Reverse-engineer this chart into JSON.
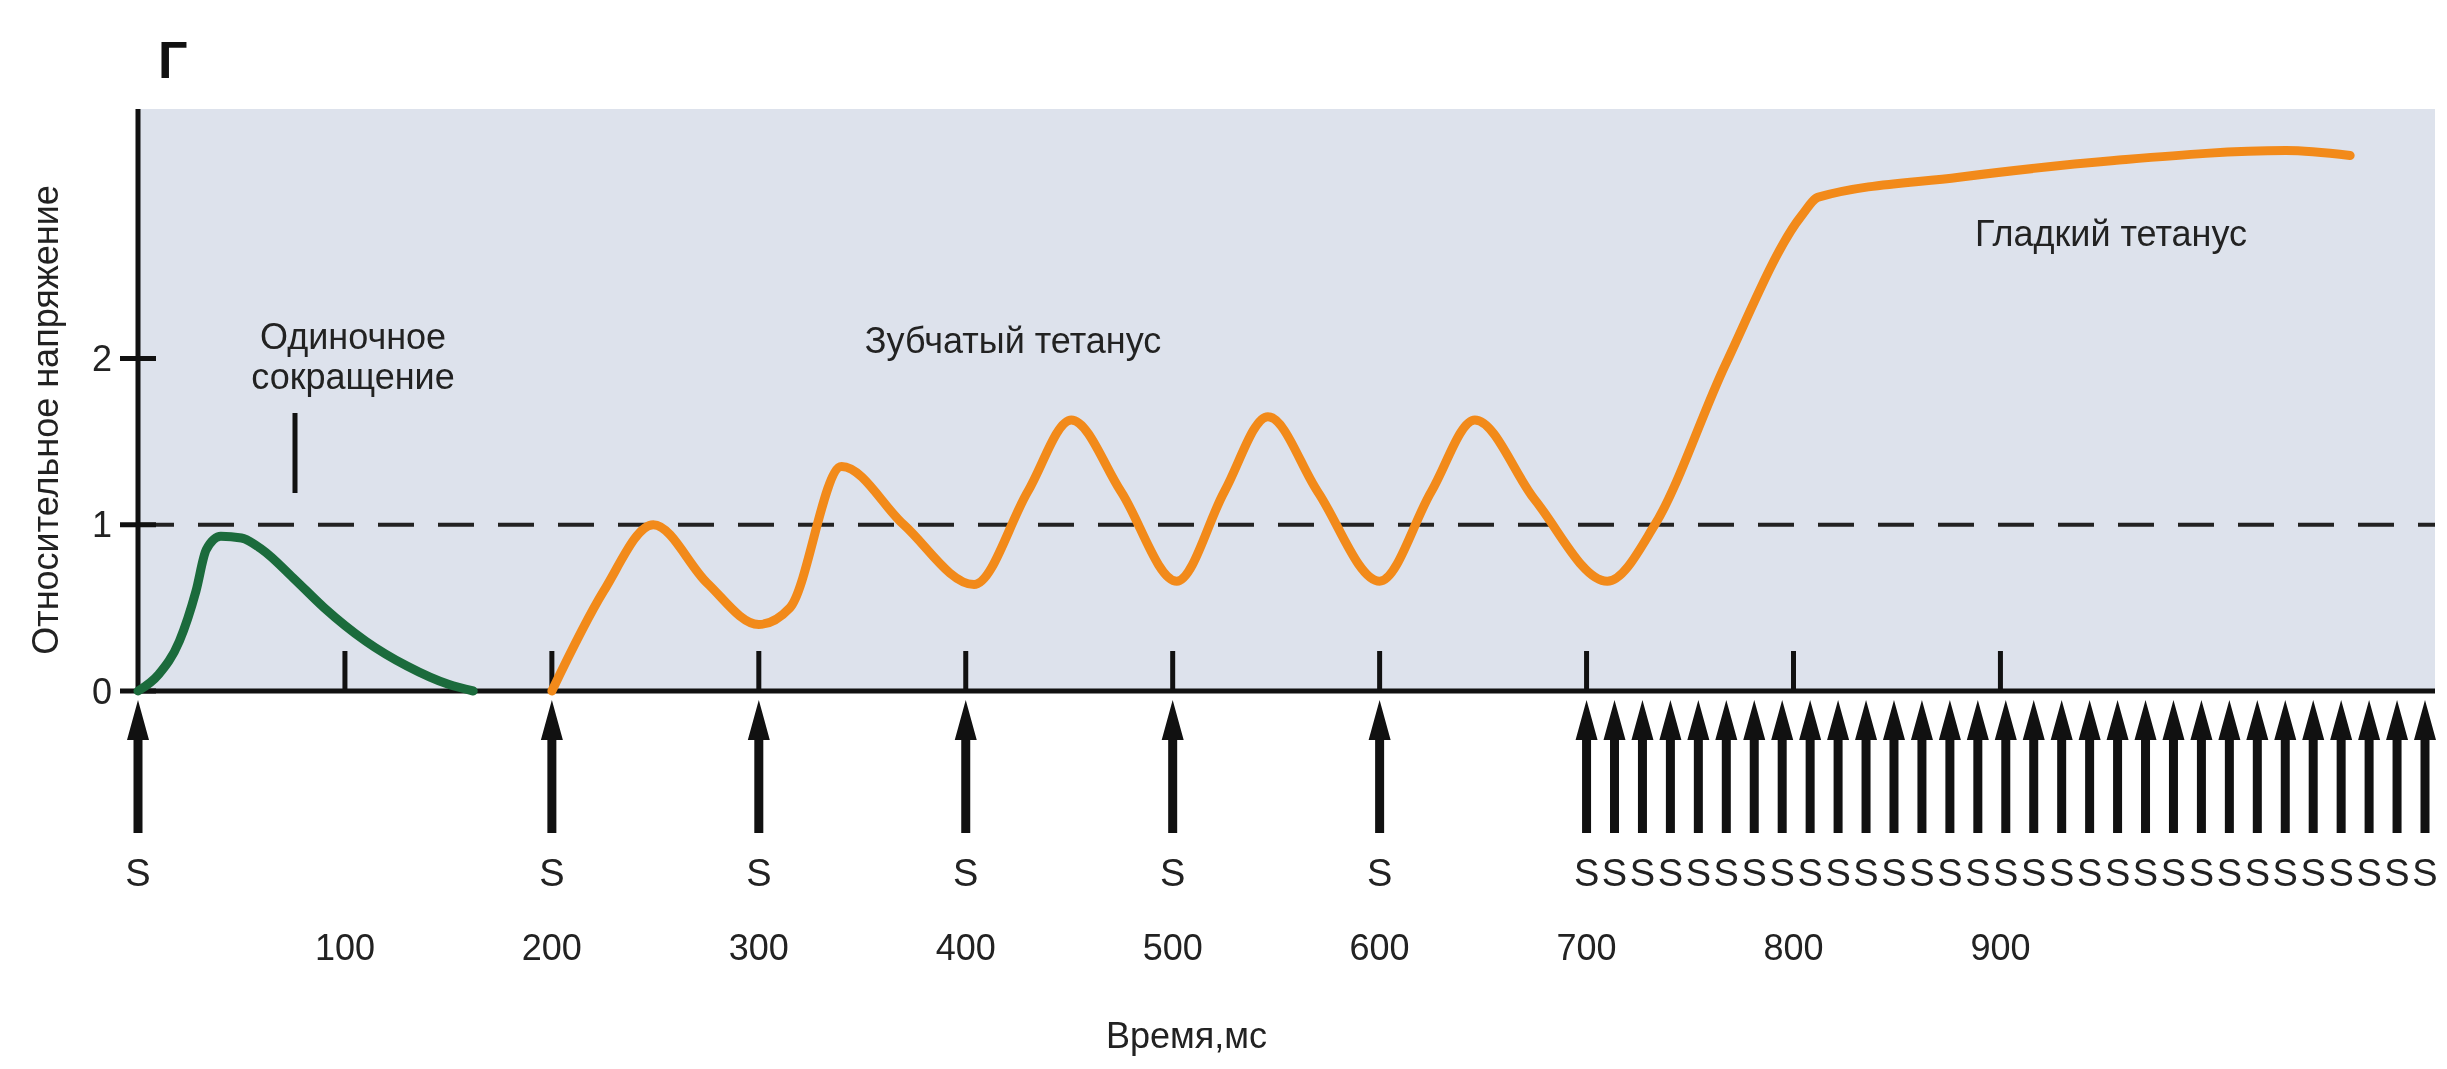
{
  "chart_data": {
    "type": "line",
    "title": "Г",
    "xlabel": "Время,мс",
    "ylabel": "Относительное напряжение",
    "xlim": [
      0,
      1110
    ],
    "xticks": [
      100,
      200,
      300,
      400,
      500,
      600,
      700,
      800,
      900
    ],
    "ylim": [
      0,
      3.5
    ],
    "yticks": [
      0,
      1,
      2
    ],
    "grid": false,
    "marker": "none",
    "line_style": "solid",
    "series": [
      {
        "color": "#1b6b3c",
        "x": [
          0,
          10,
          20,
          28,
          33,
          40,
          50,
          60,
          75,
          90,
          110,
          130,
          150,
          162
        ],
        "values": [
          0,
          0.1,
          0.3,
          0.6,
          0.85,
          0.93,
          0.92,
          0.85,
          0.68,
          0.5,
          0.3,
          0.15,
          0.04,
          0
        ]
      },
      {
        "color": "#f28a1a",
        "x": [
          200,
          225,
          249,
          275,
          300,
          315,
          340,
          370,
          404,
          430,
          451,
          475,
          502,
          525,
          546,
          570,
          600,
          625,
          646,
          675,
          710,
          733,
          767,
          804,
          812,
          880,
          955,
          1038,
          1069
        ],
        "values": [
          0,
          0.6,
          1.0,
          0.65,
          0.4,
          0.5,
          1.35,
          1.0,
          0.64,
          1.2,
          1.63,
          1.2,
          0.66,
          1.2,
          1.65,
          1.2,
          0.66,
          1.2,
          1.63,
          1.15,
          0.66,
          1.0,
          1.96,
          2.86,
          2.97,
          3.09,
          3.19,
          3.25,
          3.22
        ]
      }
    ],
    "ref_lines": [
      {
        "axis": "y",
        "value": 1,
        "line_style": "dashed",
        "color": "#222222"
      }
    ],
    "annotations": [
      "Одиночное сокращение",
      "Зубчатый тетанус",
      "Гладкий тетанус",
      "S",
      "S",
      "S",
      "S",
      "S",
      "S",
      "S",
      "S",
      "S",
      "S",
      "S",
      "S",
      "S",
      "S",
      "S",
      "S",
      "S",
      "S",
      "S",
      "S",
      "S",
      "S",
      "S",
      "S",
      "S",
      "S",
      "S",
      "S",
      "S",
      "S",
      "S",
      "S",
      "S",
      "S",
      "S",
      "S",
      "S"
    ]
  }
}
